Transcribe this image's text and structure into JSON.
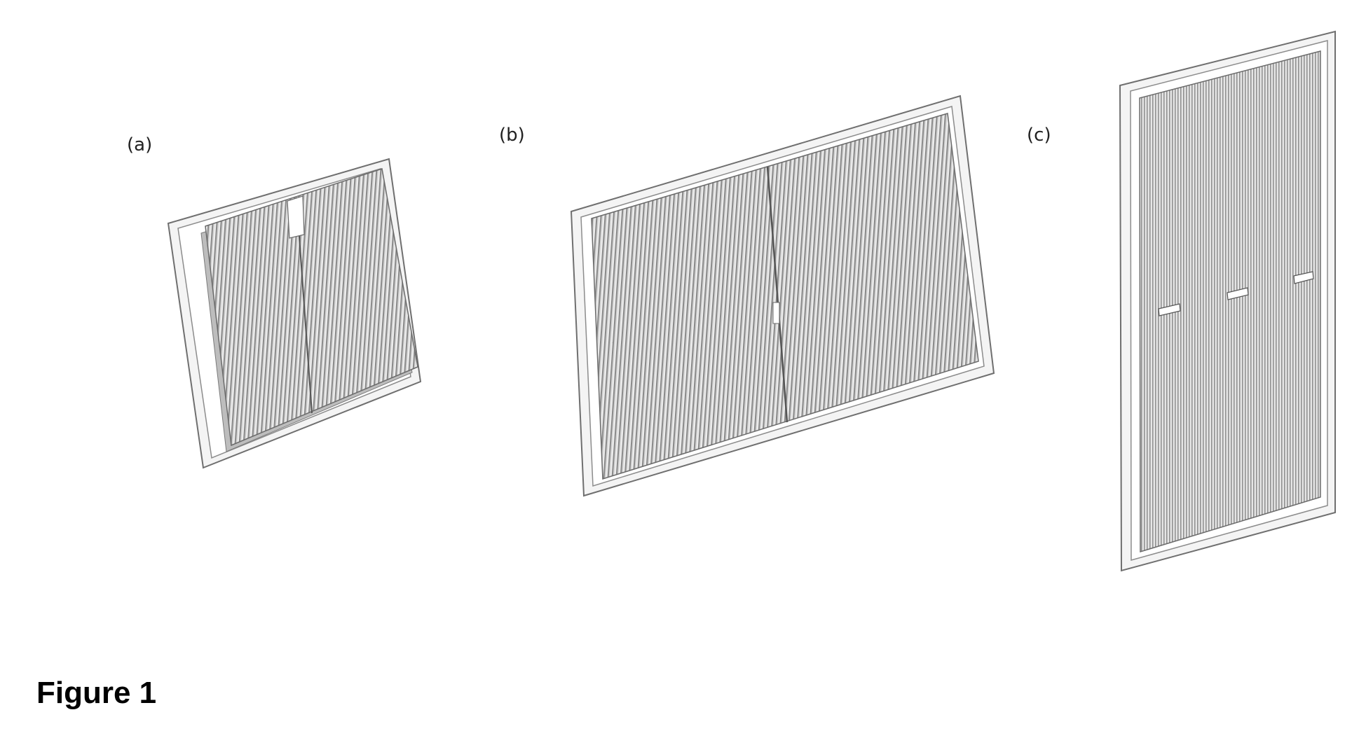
{
  "figure": {
    "caption": "Figure 1",
    "panels": [
      {
        "id": "a",
        "label": "(a)"
      },
      {
        "id": "b",
        "label": "(b)"
      },
      {
        "id": "c",
        "label": "(c)"
      }
    ]
  },
  "colors": {
    "frame_fill": "#f4f4f4",
    "frame_stroke": "#6f6f6f",
    "pleat_base": "#cfcfcf",
    "pleat_dark": "#8a8a8a",
    "pleat_light": "#ececec",
    "tab_fill": "#ffffff"
  }
}
